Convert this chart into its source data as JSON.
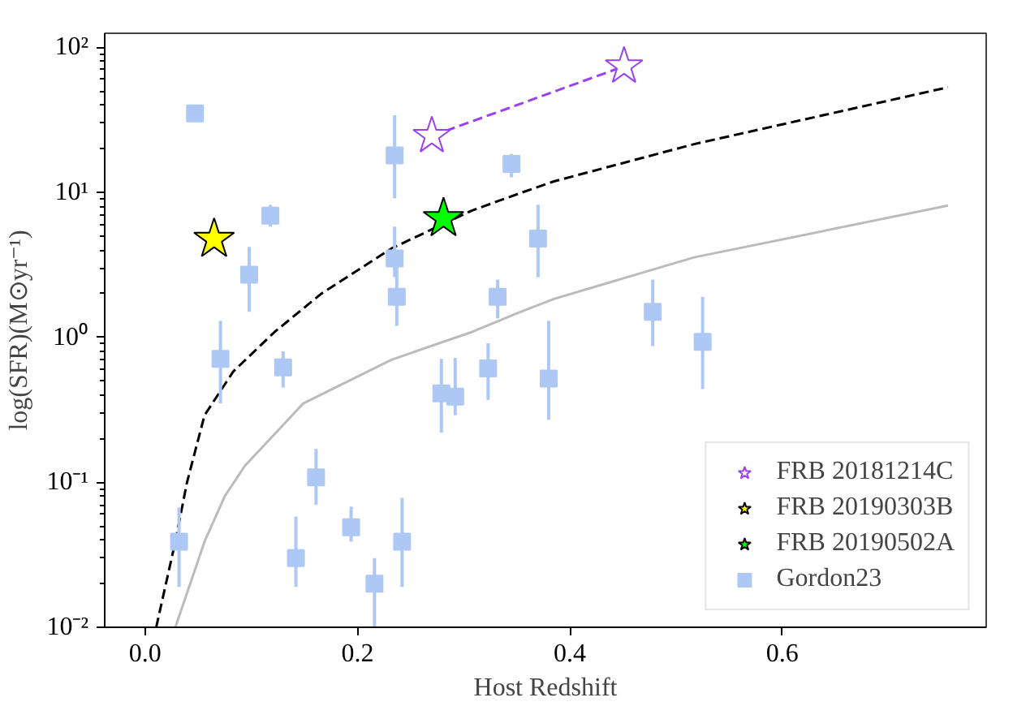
{
  "chart_data": {
    "type": "scatter",
    "xlabel": "Host Redshift",
    "ylabel": "log(SFR)(M⊙yr⁻¹)",
    "xlim": [
      -0.038,
      0.792
    ],
    "ylim": [
      0.01,
      125
    ],
    "log": "y",
    "grid": false,
    "legend": "bottom right",
    "xticks": [
      {
        "value": 0,
        "label": "0.0"
      },
      0.2,
      0.4,
      0.6
    ],
    "yticks": [
      {
        "value": 0.01,
        "label": "10⁻²"
      },
      {
        "value": 0.1,
        "label": "10⁻¹"
      },
      {
        "value": 1,
        "label": "10⁰"
      },
      {
        "value": 10,
        "label": "10¹"
      },
      {
        "value": 100,
        "label": "10²"
      }
    ],
    "series": [
      {
        "type": "line",
        "color": "#000000",
        "line_style": "dashed",
        "marker": "none",
        "x": [
          0.0105,
          0.0285,
          0.0395,
          0.056,
          0.083,
          0.122,
          0.166,
          0.232,
          0.308,
          0.352,
          0.385,
          0.517,
          0.756
        ],
        "values": [
          0.01,
          0.039,
          0.1,
          0.29,
          0.58,
          1.09,
          2.0,
          4.1,
          7.5,
          9.8,
          11.9,
          21.5,
          53
        ]
      },
      {
        "type": "line",
        "color": "#bbbbbb",
        "line_style": "solid",
        "marker": "none",
        "x": [
          0.0285,
          0.056,
          0.075,
          0.094,
          0.149,
          0.232,
          0.308,
          0.352,
          0.385,
          0.517,
          0.756
        ],
        "values": [
          0.01,
          0.039,
          0.08,
          0.13,
          0.35,
          0.7,
          1.09,
          1.48,
          1.84,
          3.56,
          8.1
        ]
      },
      {
        "name": "FRB 20181214C",
        "type": "line",
        "color": "#9b40f0",
        "line_style": "dashed",
        "marker": "star",
        "x": [
          0.27,
          0.451
        ],
        "values": [
          24.5,
          74
        ]
      },
      {
        "name": "FRB 20190303B",
        "color": "#ffff00",
        "marker": "star",
        "x": [
          0.065
        ],
        "values": [
          4.75
        ]
      },
      {
        "name": "FRB 20190502A",
        "color": "#00ff00",
        "marker": "star",
        "x": [
          0.281
        ],
        "values": [
          6.6
        ]
      },
      {
        "name": "Gordon23",
        "color": "#adc8f5",
        "marker": "square",
        "x": [
          0.047,
          0.235,
          0.345,
          0.118,
          0.37,
          0.098,
          0.235,
          0.237,
          0.332,
          0.071,
          0.13,
          0.279,
          0.292,
          0.323,
          0.38,
          0.161,
          0.032,
          0.142,
          0.194,
          0.216,
          0.242,
          0.478,
          0.525
        ],
        "values": [
          35,
          18,
          15.7,
          6.9,
          4.8,
          2.7,
          3.5,
          1.9,
          1.9,
          0.71,
          0.62,
          0.41,
          0.39,
          0.61,
          0.52,
          0.108,
          0.039,
          0.03,
          0.049,
          0.02,
          0.039,
          1.5,
          0.93
        ],
        "errors": [
          null,
          [
            9.1,
            34
          ],
          [
            12.7,
            18.4
          ],
          [
            5.8,
            8.2
          ],
          [
            2.6,
            8.2
          ],
          [
            1.5,
            4.2
          ],
          [
            2.6,
            5.8
          ],
          [
            1.2,
            3.1
          ],
          [
            1.35,
            2.5
          ],
          [
            0.35,
            1.3
          ],
          [
            0.45,
            0.8
          ],
          [
            0.22,
            0.71
          ],
          [
            0.29,
            0.72
          ],
          [
            0.37,
            0.91
          ],
          [
            0.27,
            1.3
          ],
          [
            0.07,
            0.17
          ],
          [
            0.019,
            0.067
          ],
          [
            0.019,
            0.058
          ],
          [
            0.039,
            0.068
          ],
          [
            0.01,
            0.03
          ],
          [
            0.019,
            0.078
          ],
          [
            0.87,
            2.5
          ],
          [
            0.44,
            1.9
          ]
        ]
      }
    ]
  }
}
